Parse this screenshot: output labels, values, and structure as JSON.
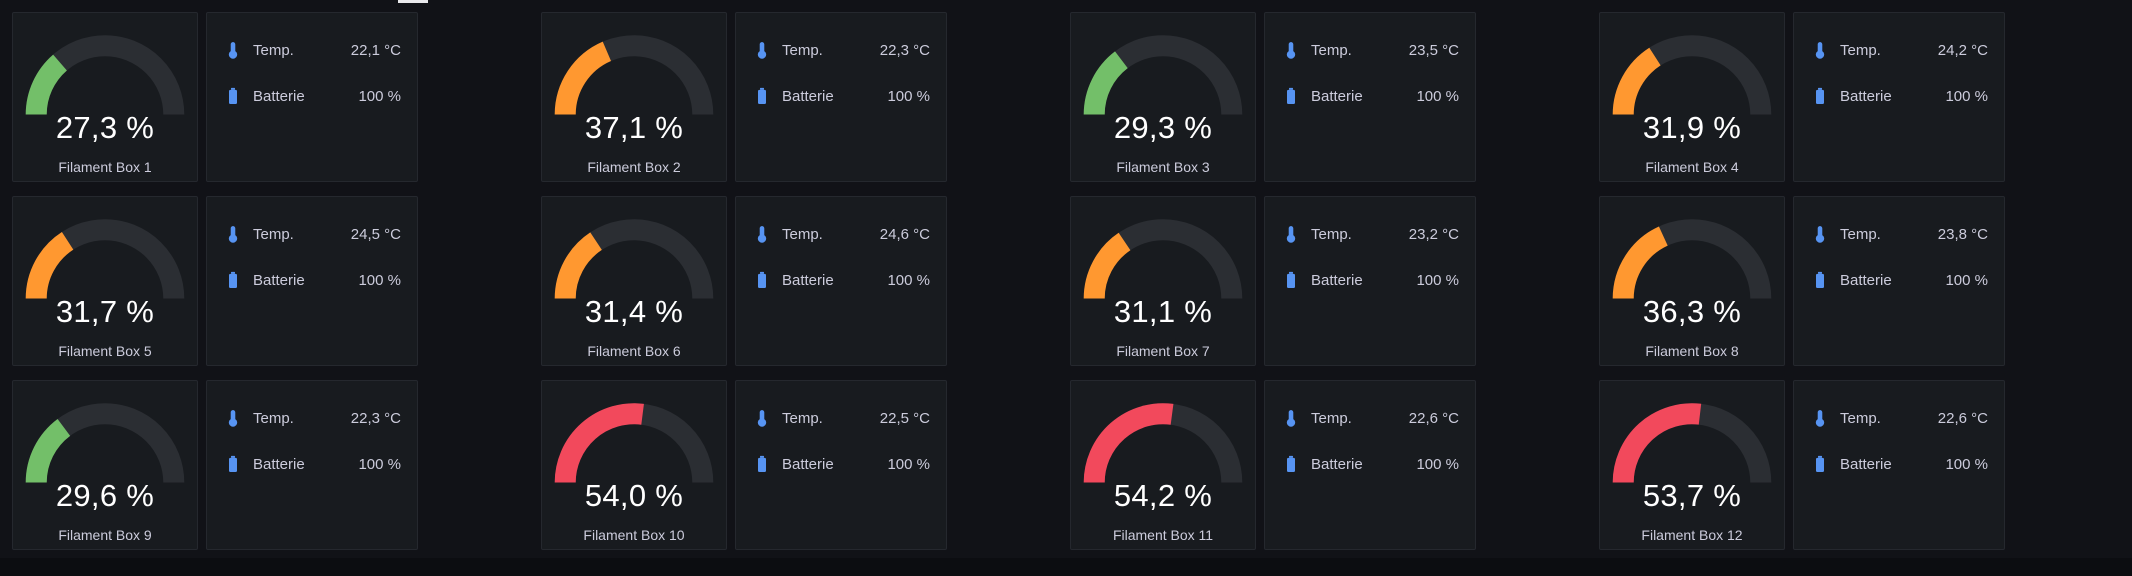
{
  "dashboard": {
    "background": "#111217",
    "panel_background": "#181b1f",
    "panel_border": "#25282e"
  },
  "colors": {
    "green": "#73BF69",
    "orange": "#FF9830",
    "red": "#F2495C",
    "icon_blue": "#5794F2",
    "gauge_track": "#2b2e33",
    "text": "#ccccdc",
    "value_text": "#ffffff"
  },
  "labels": {
    "temp": "Temp.",
    "battery": "Batterie"
  },
  "chart_data": [
    {
      "type": "gauge",
      "title": "Filament Box 1",
      "value": 27.3,
      "min": 0,
      "max": 100,
      "unit": "%",
      "display": "27,3 %",
      "color": "#73BF69",
      "stats": {
        "temp": "22,1 °C",
        "battery": "100 %"
      }
    },
    {
      "type": "gauge",
      "title": "Filament Box 2",
      "value": 37.1,
      "min": 0,
      "max": 100,
      "unit": "%",
      "display": "37,1 %",
      "color": "#FF9830",
      "stats": {
        "temp": "22,3 °C",
        "battery": "100 %"
      }
    },
    {
      "type": "gauge",
      "title": "Filament Box 3",
      "value": 29.3,
      "min": 0,
      "max": 100,
      "unit": "%",
      "display": "29,3 %",
      "color": "#73BF69",
      "stats": {
        "temp": "23,5 °C",
        "battery": "100 %"
      }
    },
    {
      "type": "gauge",
      "title": "Filament Box 4",
      "value": 31.9,
      "min": 0,
      "max": 100,
      "unit": "%",
      "display": "31,9 %",
      "color": "#FF9830",
      "stats": {
        "temp": "24,2 °C",
        "battery": "100 %"
      }
    },
    {
      "type": "gauge",
      "title": "Filament Box 5",
      "value": 31.7,
      "min": 0,
      "max": 100,
      "unit": "%",
      "display": "31,7 %",
      "color": "#FF9830",
      "stats": {
        "temp": "24,5 °C",
        "battery": "100 %"
      }
    },
    {
      "type": "gauge",
      "title": "Filament Box 6",
      "value": 31.4,
      "min": 0,
      "max": 100,
      "unit": "%",
      "display": "31,4 %",
      "color": "#FF9830",
      "stats": {
        "temp": "24,6 °C",
        "battery": "100 %"
      }
    },
    {
      "type": "gauge",
      "title": "Filament Box 7",
      "value": 31.1,
      "min": 0,
      "max": 100,
      "unit": "%",
      "display": "31,1 %",
      "color": "#FF9830",
      "stats": {
        "temp": "23,2 °C",
        "battery": "100 %"
      }
    },
    {
      "type": "gauge",
      "title": "Filament Box 8",
      "value": 36.3,
      "min": 0,
      "max": 100,
      "unit": "%",
      "display": "36,3 %",
      "color": "#FF9830",
      "stats": {
        "temp": "23,8 °C",
        "battery": "100 %"
      }
    },
    {
      "type": "gauge",
      "title": "Filament Box 9",
      "value": 29.6,
      "min": 0,
      "max": 100,
      "unit": "%",
      "display": "29,6 %",
      "color": "#73BF69",
      "stats": {
        "temp": "22,3 °C",
        "battery": "100 %"
      }
    },
    {
      "type": "gauge",
      "title": "Filament Box 10",
      "value": 54.0,
      "min": 0,
      "max": 100,
      "unit": "%",
      "display": "54,0 %",
      "color": "#F2495C",
      "stats": {
        "temp": "22,5 °C",
        "battery": "100 %"
      }
    },
    {
      "type": "gauge",
      "title": "Filament Box 11",
      "value": 54.2,
      "min": 0,
      "max": 100,
      "unit": "%",
      "display": "54,2 %",
      "color": "#F2495C",
      "stats": {
        "temp": "22,6 °C",
        "battery": "100 %"
      }
    },
    {
      "type": "gauge",
      "title": "Filament Box 12",
      "value": 53.7,
      "min": 0,
      "max": 100,
      "unit": "%",
      "display": "53,7 %",
      "color": "#F2495C",
      "stats": {
        "temp": "22,6 °C",
        "battery": "100 %"
      }
    }
  ]
}
